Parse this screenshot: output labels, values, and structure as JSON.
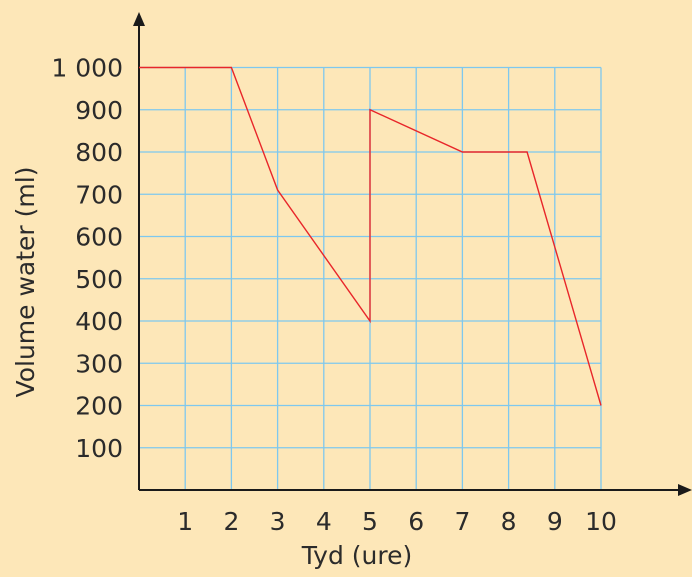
{
  "colors": {
    "background": "#fde7b8",
    "grid": "#7ec8ee",
    "axis": "#1a1a1a",
    "line": "#e8262a",
    "text": "#2b2b2b"
  },
  "chart_data": {
    "type": "line",
    "title": "",
    "xlabel": "Tyd (ure)",
    "ylabel": "Volume water (ml)",
    "xlim": [
      0,
      10
    ],
    "ylim": [
      0,
      1000
    ],
    "grid": true,
    "x_tick_labels": [
      "1",
      "2",
      "3",
      "4",
      "5",
      "6",
      "7",
      "8",
      "9",
      "10"
    ],
    "y_tick_labels": [
      "100",
      "200",
      "300",
      "400",
      "500",
      "600",
      "700",
      "800",
      "900",
      "1 000"
    ],
    "series": [
      {
        "x": [
          0,
          2,
          3,
          5,
          5,
          7,
          8.4,
          10
        ],
        "y": [
          1000,
          1000,
          710,
          400,
          900,
          800,
          800,
          200
        ]
      }
    ]
  }
}
